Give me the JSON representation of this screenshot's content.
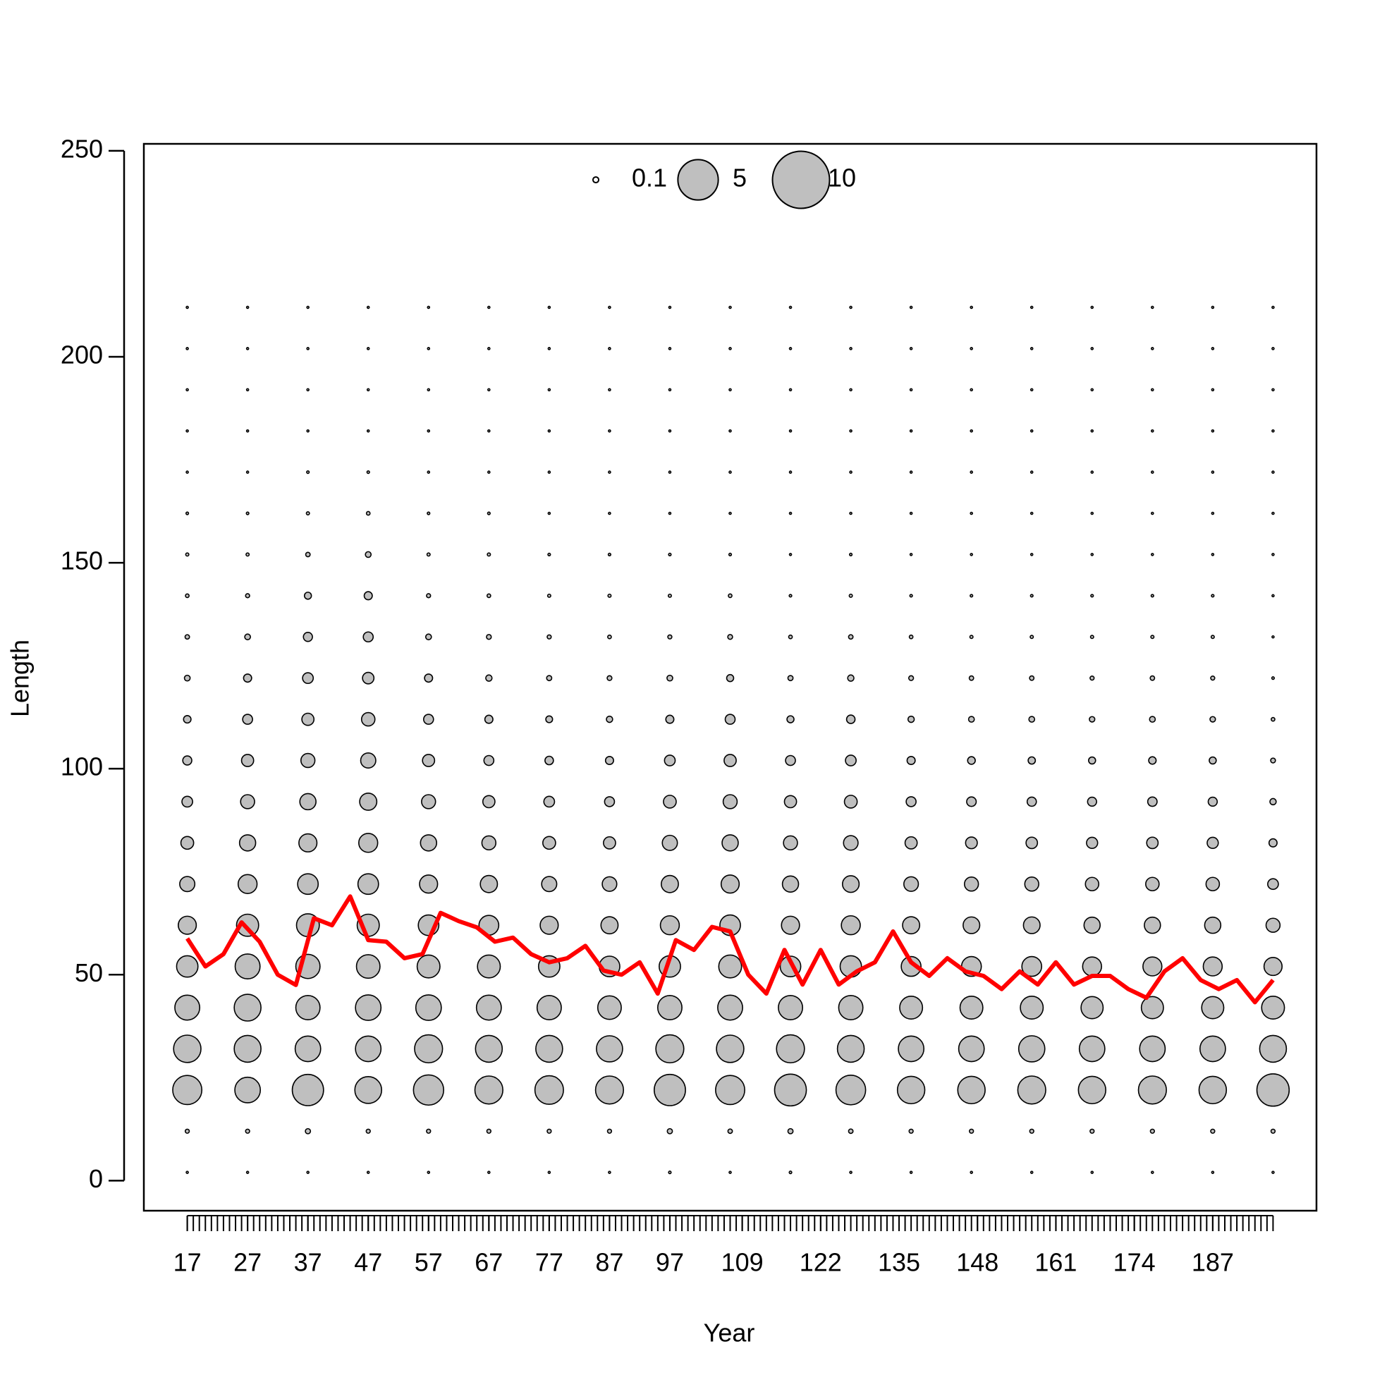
{
  "chart_data": {
    "type": "bubble",
    "xlabel": "Year",
    "ylabel": "Length",
    "xlim": [
      9.8,
      204.2
    ],
    "ylim": [
      -7.3,
      251.7
    ],
    "xticks": [
      17,
      27,
      37,
      47,
      57,
      67,
      77,
      87,
      97,
      109,
      122,
      135,
      148,
      161,
      174,
      187
    ],
    "xticks_minor": [
      17,
      18,
      19,
      20,
      21,
      22,
      23,
      24,
      25,
      26,
      27,
      28,
      29,
      30,
      31,
      32,
      33,
      34,
      35,
      36,
      37,
      38,
      39,
      40,
      41,
      42,
      43,
      44,
      45,
      46,
      47,
      48,
      49,
      50,
      51,
      52,
      53,
      54,
      55,
      56,
      57,
      58,
      59,
      60,
      61,
      62,
      63,
      64,
      65,
      66,
      67,
      68,
      69,
      70,
      71,
      72,
      73,
      74,
      75,
      76,
      77,
      78,
      79,
      80,
      81,
      82,
      83,
      84,
      85,
      86,
      87,
      88,
      89,
      90,
      91,
      92,
      93,
      94,
      95,
      96,
      97,
      98,
      99,
      100,
      101,
      102,
      103,
      104,
      105,
      106,
      107,
      108,
      109,
      110,
      111,
      112,
      113,
      114,
      115,
      116,
      117,
      118,
      119,
      120,
      121,
      122,
      123,
      124,
      125,
      126,
      127,
      128,
      129,
      130,
      131,
      132,
      133,
      134,
      135,
      136,
      137,
      138,
      139,
      140,
      141,
      142,
      143,
      144,
      145,
      146,
      147,
      148,
      149,
      150,
      151,
      152,
      153,
      154,
      155,
      156,
      157,
      158,
      159,
      160,
      161,
      162,
      163,
      164,
      165,
      166,
      167,
      168,
      169,
      170,
      171,
      172,
      173,
      174,
      175,
      176,
      177,
      178,
      179,
      180,
      181,
      182,
      183,
      184,
      185,
      186,
      187,
      188,
      189,
      190,
      191,
      192,
      193,
      194,
      195,
      196,
      197
    ],
    "yticks": [
      0,
      50,
      100,
      150,
      200,
      250
    ],
    "legend_sizes": [
      0.1,
      5,
      10
    ],
    "bubbles": {
      "color": "#bfbfbf",
      "years": [
        17,
        27,
        37,
        47,
        57,
        67,
        77,
        87,
        97,
        107,
        117,
        127,
        137,
        147,
        157,
        167,
        177,
        187,
        197
      ],
      "lengths": [
        2,
        12,
        22,
        32,
        42,
        52,
        62,
        72,
        82,
        92,
        102,
        112,
        122,
        132,
        142,
        152,
        162,
        172,
        182,
        192,
        202,
        212
      ],
      "sizes": [
        [
          0.01,
          0.05,
          2.6,
          2.3,
          1.9,
          1.4,
          1.0,
          0.7,
          0.5,
          0.35,
          0.25,
          0.17,
          0.1,
          0.06,
          0.04,
          0.03,
          0.02,
          0.01,
          0.01,
          0.01,
          0.005,
          0.005
        ],
        [
          0.01,
          0.05,
          2.0,
          2.2,
          2.2,
          1.9,
          1.5,
          1.1,
          0.8,
          0.6,
          0.45,
          0.3,
          0.2,
          0.1,
          0.05,
          0.03,
          0.02,
          0.01,
          0.01,
          0.01,
          0.005,
          0.005
        ],
        [
          0.01,
          0.08,
          3.0,
          2.0,
          1.8,
          1.8,
          1.6,
          1.3,
          1.0,
          0.8,
          0.6,
          0.45,
          0.35,
          0.25,
          0.15,
          0.06,
          0.03,
          0.02,
          0.01,
          0.01,
          0.005,
          0.005
        ],
        [
          0.01,
          0.05,
          2.2,
          2.0,
          2.0,
          1.7,
          1.5,
          1.3,
          1.1,
          0.9,
          0.7,
          0.55,
          0.4,
          0.3,
          0.2,
          0.1,
          0.04,
          0.02,
          0.01,
          0.01,
          0.005,
          0.005
        ],
        [
          0.01,
          0.05,
          2.8,
          2.4,
          2.0,
          1.6,
          1.3,
          1.0,
          0.8,
          0.6,
          0.45,
          0.3,
          0.2,
          0.1,
          0.05,
          0.03,
          0.02,
          0.01,
          0.01,
          0.01,
          0.005,
          0.005
        ],
        [
          0.01,
          0.05,
          2.4,
          2.2,
          1.9,
          1.6,
          1.2,
          0.9,
          0.6,
          0.45,
          0.3,
          0.2,
          0.12,
          0.07,
          0.04,
          0.03,
          0.02,
          0.01,
          0.01,
          0.01,
          0.005,
          0.005
        ],
        [
          0.01,
          0.05,
          2.5,
          2.2,
          1.8,
          1.4,
          1.0,
          0.7,
          0.5,
          0.35,
          0.22,
          0.14,
          0.08,
          0.05,
          0.03,
          0.02,
          0.01,
          0.01,
          0.01,
          0.005,
          0.005,
          0.005
        ],
        [
          0.01,
          0.05,
          2.4,
          2.1,
          1.7,
          1.3,
          0.9,
          0.65,
          0.45,
          0.3,
          0.2,
          0.12,
          0.07,
          0.04,
          0.03,
          0.02,
          0.01,
          0.01,
          0.01,
          0.005,
          0.005,
          0.005
        ],
        [
          0.02,
          0.08,
          3.0,
          2.4,
          1.8,
          1.4,
          1.1,
          0.9,
          0.7,
          0.5,
          0.35,
          0.2,
          0.1,
          0.05,
          0.03,
          0.02,
          0.01,
          0.01,
          0.01,
          0.005,
          0.005,
          0.005
        ],
        [
          0.01,
          0.06,
          2.6,
          2.3,
          1.9,
          1.6,
          1.3,
          1.0,
          0.8,
          0.6,
          0.45,
          0.3,
          0.15,
          0.07,
          0.04,
          0.02,
          0.01,
          0.01,
          0.01,
          0.005,
          0.005,
          0.005
        ],
        [
          0.02,
          0.08,
          3.1,
          2.4,
          1.8,
          1.3,
          1.0,
          0.8,
          0.6,
          0.45,
          0.3,
          0.15,
          0.08,
          0.04,
          0.02,
          0.01,
          0.01,
          0.01,
          0.005,
          0.005,
          0.005,
          0.005
        ],
        [
          0.01,
          0.06,
          2.7,
          2.2,
          1.8,
          1.4,
          1.1,
          0.85,
          0.65,
          0.5,
          0.35,
          0.22,
          0.12,
          0.06,
          0.03,
          0.02,
          0.01,
          0.01,
          0.01,
          0.005,
          0.005,
          0.005
        ],
        [
          0.01,
          0.05,
          2.3,
          2.0,
          1.6,
          1.2,
          0.9,
          0.65,
          0.45,
          0.3,
          0.2,
          0.12,
          0.07,
          0.04,
          0.02,
          0.01,
          0.01,
          0.01,
          0.01,
          0.005,
          0.005,
          0.005
        ],
        [
          0.01,
          0.05,
          2.3,
          2.0,
          1.6,
          1.2,
          0.85,
          0.6,
          0.42,
          0.28,
          0.18,
          0.1,
          0.06,
          0.03,
          0.02,
          0.01,
          0.01,
          0.01,
          0.005,
          0.005,
          0.005,
          0.005
        ],
        [
          0.01,
          0.05,
          2.4,
          2.1,
          1.6,
          1.2,
          0.85,
          0.6,
          0.4,
          0.26,
          0.16,
          0.1,
          0.06,
          0.03,
          0.02,
          0.01,
          0.01,
          0.01,
          0.005,
          0.005,
          0.005,
          0.005
        ],
        [
          0.01,
          0.05,
          2.3,
          2.0,
          1.5,
          1.1,
          0.8,
          0.55,
          0.38,
          0.25,
          0.15,
          0.09,
          0.05,
          0.03,
          0.02,
          0.01,
          0.01,
          0.01,
          0.005,
          0.005,
          0.005,
          0.005
        ],
        [
          0.01,
          0.05,
          2.4,
          2.0,
          1.5,
          1.1,
          0.8,
          0.55,
          0.4,
          0.27,
          0.17,
          0.1,
          0.06,
          0.03,
          0.02,
          0.01,
          0.01,
          0.01,
          0.005,
          0.005,
          0.005,
          0.005
        ],
        [
          0.01,
          0.05,
          2.3,
          2.0,
          1.5,
          1.1,
          0.8,
          0.55,
          0.38,
          0.25,
          0.15,
          0.09,
          0.05,
          0.03,
          0.02,
          0.01,
          0.01,
          0.01,
          0.005,
          0.005,
          0.005,
          0.005
        ],
        [
          0.01,
          0.05,
          3.2,
          2.2,
          1.6,
          1.0,
          0.6,
          0.35,
          0.2,
          0.12,
          0.07,
          0.04,
          0.02,
          0.01,
          0.01,
          0.01,
          0.005,
          0.005,
          0.005,
          0.005,
          0.005,
          0.005
        ]
      ]
    },
    "line": {
      "color": "#ff0000",
      "x": [
        17,
        20,
        23,
        26,
        29,
        32,
        35,
        38,
        41,
        44,
        47,
        50,
        53,
        56,
        59,
        62,
        65,
        68,
        71,
        74,
        77,
        80,
        83,
        86,
        89,
        92,
        95,
        98,
        101,
        104,
        107,
        110,
        113,
        116,
        119,
        122,
        125,
        128,
        131,
        134,
        137,
        140,
        143,
        146,
        149,
        152,
        155,
        158,
        161,
        164,
        167,
        170,
        173,
        176,
        179,
        182,
        185,
        188,
        191,
        194,
        197
      ],
      "values": [
        58.8,
        52,
        55,
        62.7,
        58,
        50,
        47.5,
        63.7,
        62,
        69,
        58.4,
        58,
        54,
        55,
        65,
        63,
        61.5,
        58,
        59,
        55,
        53,
        54,
        57,
        51,
        50,
        53,
        45.4,
        58.4,
        56,
        61.6,
        60.5,
        50,
        45.4,
        56,
        47.6,
        56,
        47.6,
        50.8,
        53,
        60.5,
        53,
        49.7,
        54,
        50.8,
        49.7,
        46.5,
        50.8,
        47.6,
        53,
        47.6,
        49.7,
        49.7,
        46.5,
        44.4,
        50.8,
        54,
        48.7,
        46.5,
        48.7,
        43.3,
        48.7
      ]
    }
  }
}
